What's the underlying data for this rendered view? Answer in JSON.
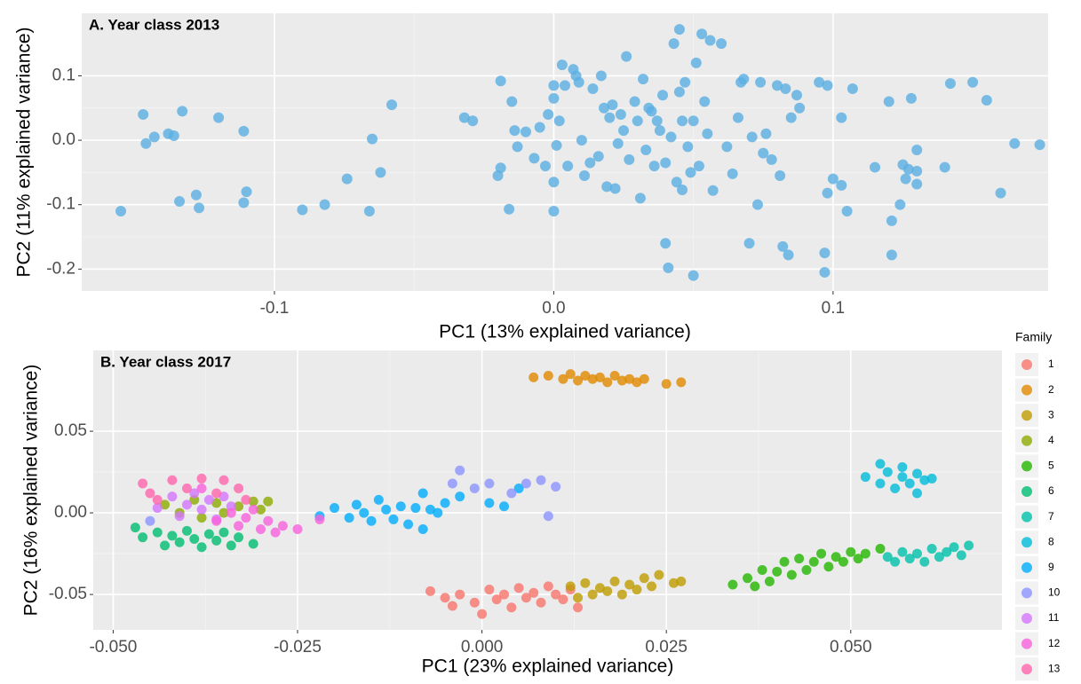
{
  "chart_data": [
    {
      "type": "scatter",
      "title": "A. Year class 2013",
      "xlabel": "PC1 (13% explained variance)",
      "ylabel": "PC2 (11% explained variance)",
      "color": "#5AAFE3",
      "x": [
        -0.147,
        -0.146,
        -0.143,
        -0.138,
        -0.136,
        -0.133,
        -0.134,
        -0.128,
        -0.127,
        -0.12,
        -0.111,
        -0.11,
        -0.111,
        -0.155,
        -0.09,
        -0.082,
        -0.074,
        -0.066,
        -0.065,
        -0.062,
        -0.058,
        -0.032,
        -0.029,
        -0.019,
        -0.019,
        -0.02,
        -0.016,
        -0.015,
        -0.014,
        -0.013,
        -0.01,
        -0.007,
        -0.005,
        -0.003,
        -0.002,
        0,
        0,
        0,
        0,
        0.001,
        0.002,
        0.003,
        0.004,
        0.005,
        0.007,
        0.008,
        0.009,
        0.01,
        0.011,
        0.013,
        0.014,
        0.016,
        0.017,
        0.018,
        0.019,
        0.02,
        0.021,
        0.022,
        0.023,
        0.024,
        0.025,
        0.026,
        0.027,
        0.029,
        0.03,
        0.031,
        0.032,
        0.033,
        0.034,
        0.035,
        0.036,
        0.037,
        0.038,
        0.039,
        0.04,
        0.04,
        0.041,
        0.042,
        0.043,
        0.044,
        0.045,
        0.045,
        0.046,
        0.046,
        0.047,
        0.048,
        0.049,
        0.05,
        0.05,
        0.051,
        0.052,
        0.053,
        0.054,
        0.055,
        0.056,
        0.057,
        0.06,
        0.062,
        0.064,
        0.066,
        0.067,
        0.068,
        0.07,
        0.071,
        0.073,
        0.074,
        0.075,
        0.076,
        0.078,
        0.08,
        0.081,
        0.082,
        0.083,
        0.084,
        0.085,
        0.087,
        0.088,
        0.095,
        0.097,
        0.097,
        0.098,
        0.098,
        0.1,
        0.103,
        0.103,
        0.105,
        0.107,
        0.115,
        0.12,
        0.121,
        0.121,
        0.124,
        0.125,
        0.126,
        0.127,
        0.128,
        0.13,
        0.13,
        0.13,
        0.14,
        0.142,
        0.15,
        0.155,
        0.16,
        0.165,
        0.174
      ],
      "values": [
        0.04,
        -0.005,
        0.005,
        0.01,
        0.007,
        0.045,
        -0.095,
        -0.085,
        -0.105,
        0.035,
        0.014,
        -0.08,
        -0.097,
        -0.11,
        -0.108,
        -0.1,
        -0.06,
        -0.11,
        0.002,
        -0.05,
        0.055,
        0.035,
        0.03,
        0.092,
        -0.043,
        -0.055,
        -0.107,
        0.06,
        0.015,
        -0.01,
        0.013,
        -0.028,
        0.02,
        -0.04,
        0.04,
        0.085,
        0.065,
        -0.065,
        -0.11,
        -0.008,
        0.03,
        0.117,
        0.085,
        -0.04,
        0.11,
        0.1,
        0.09,
        0.0,
        -0.055,
        -0.035,
        0.08,
        -0.025,
        0.1,
        0.05,
        -0.072,
        0.035,
        0.055,
        -0.075,
        -0.005,
        0.04,
        0.015,
        0.13,
        -0.03,
        0.06,
        0.03,
        -0.09,
        0.095,
        -0.015,
        0.05,
        0.045,
        -0.04,
        0.03,
        0.015,
        0.07,
        -0.035,
        -0.16,
        -0.198,
        0.005,
        0.15,
        -0.065,
        0.172,
        0.075,
        0.03,
        -0.077,
        0.09,
        -0.01,
        -0.05,
        -0.21,
        0.03,
        0.12,
        -0.04,
        0.165,
        0.06,
        0.01,
        0.155,
        -0.078,
        0.15,
        -0.01,
        -0.052,
        0.035,
        0.09,
        0.095,
        -0.16,
        0.005,
        -0.1,
        0.09,
        -0.02,
        0.01,
        -0.03,
        0.085,
        -0.055,
        -0.165,
        0.08,
        -0.178,
        0.035,
        0.07,
        0.05,
        0.09,
        -0.175,
        -0.205,
        -0.082,
        0.085,
        -0.06,
        -0.07,
        0.035,
        -0.11,
        0.08,
        -0.042,
        0.06,
        -0.125,
        -0.178,
        -0.1,
        -0.038,
        -0.06,
        -0.045,
        0.065,
        -0.015,
        -0.048,
        -0.068,
        -0.042,
        0.088,
        0.09,
        0.062,
        -0.082,
        -0.005,
        -0.007
      ],
      "xlim": [
        -0.169,
        0.177
      ],
      "ylim": [
        -0.234,
        0.197
      ],
      "xticks": [
        -0.1,
        {
          "value": 0.0,
          "label": "0.0"
        },
        0.1
      ],
      "yticks": [
        -0.2,
        -0.1,
        {
          "value": 0.0,
          "label": "0.0"
        },
        0.1
      ],
      "grid": true
    },
    {
      "type": "scatter",
      "title": "B. Year class 2017",
      "xlabel": "PC1 (23% explained variance)",
      "ylabel": "PC2 (16% explained variance)",
      "legend_title": "Family",
      "legend": "right",
      "xlim": [
        -0.0527,
        0.0705
      ],
      "ylim": [
        -0.0717,
        0.0995
      ],
      "xticks": [
        {
          "value": -0.05,
          "label": "-0.050"
        },
        {
          "value": -0.025,
          "label": "-0.025"
        },
        {
          "value": 0,
          "label": "0.000"
        },
        {
          "value": 0.025,
          "label": "0.025"
        },
        {
          "value": 0.05,
          "label": "0.050"
        }
      ],
      "yticks": [
        -0.05,
        {
          "value": 0,
          "label": "0.00"
        },
        0.05
      ],
      "grid": true,
      "series": [
        {
          "name": "1",
          "color": "#F8766D",
          "x": [
            -0.007,
            -0.005,
            -0.003,
            -0.001,
            0.001,
            0.002,
            0.003,
            0.004,
            0.005,
            0.006,
            0.007,
            0.008,
            0.009,
            0.01,
            0.011,
            0.012,
            0.013,
            -0.004,
            0.0
          ],
          "values": [
            -0.048,
            -0.052,
            -0.05,
            -0.055,
            -0.047,
            -0.053,
            -0.05,
            -0.058,
            -0.046,
            -0.052,
            -0.049,
            -0.055,
            -0.045,
            -0.05,
            -0.053,
            -0.047,
            -0.058,
            -0.057,
            -0.062
          ]
        },
        {
          "name": "2",
          "color": "#E18A00",
          "x": [
            0.007,
            0.009,
            0.011,
            0.012,
            0.013,
            0.014,
            0.015,
            0.016,
            0.017,
            0.018,
            0.019,
            0.02,
            0.021,
            0.022,
            0.025,
            0.027
          ],
          "values": [
            0.083,
            0.084,
            0.082,
            0.085,
            0.081,
            0.084,
            0.082,
            0.083,
            0.08,
            0.084,
            0.081,
            0.082,
            0.08,
            0.082,
            0.079,
            0.08
          ]
        },
        {
          "name": "3",
          "color": "#BE9C00",
          "x": [
            0.012,
            0.013,
            0.014,
            0.015,
            0.016,
            0.017,
            0.018,
            0.019,
            0.02,
            0.021,
            0.022,
            0.023,
            0.024,
            0.026,
            0.027
          ],
          "values": [
            -0.045,
            -0.052,
            -0.043,
            -0.05,
            -0.046,
            -0.048,
            -0.042,
            -0.05,
            -0.044,
            -0.047,
            -0.04,
            -0.045,
            -0.038,
            -0.043,
            -0.042
          ]
        },
        {
          "name": "4",
          "color": "#8CAB00",
          "x": [
            -0.043,
            -0.041,
            -0.039,
            -0.038,
            -0.036,
            -0.035,
            -0.033,
            -0.031,
            -0.03,
            -0.029
          ],
          "values": [
            0.005,
            0.0,
            0.008,
            -0.003,
            0.006,
            0.0,
            0.004,
            0.007,
            0.002,
            0.007
          ]
        },
        {
          "name": "5",
          "color": "#24B700",
          "x": [
            0.034,
            0.036,
            0.037,
            0.038,
            0.039,
            0.04,
            0.041,
            0.042,
            0.043,
            0.044,
            0.045,
            0.046,
            0.047,
            0.048,
            0.049,
            0.05,
            0.051,
            0.052,
            0.054
          ],
          "values": [
            -0.044,
            -0.04,
            -0.045,
            -0.035,
            -0.042,
            -0.036,
            -0.03,
            -0.038,
            -0.028,
            -0.035,
            -0.03,
            -0.025,
            -0.033,
            -0.027,
            -0.03,
            -0.024,
            -0.028,
            -0.025,
            -0.022
          ]
        },
        {
          "name": "6",
          "color": "#00BE70",
          "x": [
            -0.047,
            -0.046,
            -0.044,
            -0.043,
            -0.042,
            -0.041,
            -0.04,
            -0.039,
            -0.038,
            -0.037,
            -0.036,
            -0.035,
            -0.034,
            -0.033,
            -0.031
          ],
          "values": [
            -0.009,
            -0.015,
            -0.012,
            -0.02,
            -0.014,
            -0.018,
            -0.011,
            -0.016,
            -0.021,
            -0.013,
            -0.017,
            -0.012,
            -0.02,
            -0.015,
            -0.019
          ]
        },
        {
          "name": "7",
          "color": "#00C1AB",
          "x": [
            0.055,
            0.056,
            0.057,
            0.058,
            0.059,
            0.06,
            0.061,
            0.062,
            0.063,
            0.064,
            0.065,
            0.066
          ],
          "values": [
            -0.027,
            -0.03,
            -0.024,
            -0.028,
            -0.025,
            -0.03,
            -0.022,
            -0.027,
            -0.024,
            -0.021,
            -0.026,
            -0.02
          ]
        },
        {
          "name": "8",
          "color": "#00BBDA",
          "x": [
            0.052,
            0.054,
            0.054,
            0.055,
            0.056,
            0.057,
            0.057,
            0.058,
            0.059,
            0.059,
            0.06,
            0.061
          ],
          "values": [
            0.022,
            0.018,
            0.03,
            0.025,
            0.015,
            0.022,
            0.028,
            0.018,
            0.024,
            0.012,
            0.02,
            0.021
          ]
        },
        {
          "name": "9",
          "color": "#00ACFC",
          "x": [
            -0.022,
            -0.02,
            -0.018,
            -0.017,
            -0.016,
            -0.015,
            -0.014,
            -0.013,
            -0.012,
            -0.011,
            -0.01,
            -0.009,
            -0.008,
            -0.008,
            -0.007,
            -0.006,
            -0.005,
            -0.003,
            0.001,
            0.003,
            0.005
          ],
          "values": [
            -0.002,
            0.003,
            -0.003,
            0.005,
            0.0,
            -0.005,
            0.008,
            0.002,
            -0.004,
            0.004,
            -0.007,
            0.003,
            0.012,
            -0.01,
            0.002,
            0.0,
            0.006,
            0.01,
            0.006,
            0.004,
            0.015
          ]
        },
        {
          "name": "10",
          "color": "#8B93FF",
          "x": [
            -0.004,
            -0.003,
            -0.001,
            0.001,
            0.004,
            0.006,
            0.008,
            0.01,
            0.009,
            -0.045
          ],
          "values": [
            0.018,
            0.026,
            0.015,
            0.018,
            0.012,
            0.018,
            0.02,
            0.016,
            -0.002,
            -0.005
          ]
        },
        {
          "name": "11",
          "color": "#D575FE",
          "x": [
            -0.044,
            -0.042,
            -0.041,
            -0.04,
            -0.039,
            -0.038,
            -0.037,
            -0.036,
            -0.035,
            -0.034
          ],
          "values": [
            0.003,
            0.01,
            -0.002,
            0.005,
            0.012,
            0.002,
            0.008,
            -0.004,
            0.01,
            0.004
          ]
        },
        {
          "name": "12",
          "color": "#F962DD",
          "x": [
            -0.036,
            -0.034,
            -0.033,
            -0.032,
            -0.031,
            -0.03,
            -0.029,
            -0.028,
            -0.027,
            -0.025,
            -0.022,
            -0.038
          ],
          "values": [
            -0.005,
            0.0,
            -0.008,
            -0.003,
            0.002,
            -0.01,
            -0.005,
            -0.012,
            -0.008,
            -0.01,
            -0.004,
            0.015
          ]
        },
        {
          "name": "13",
          "color": "#FF65AC",
          "x": [
            -0.046,
            -0.045,
            -0.044,
            -0.042,
            -0.04,
            -0.038,
            -0.036,
            -0.035,
            -0.033,
            -0.032
          ],
          "values": [
            0.018,
            0.012,
            0.008,
            0.02,
            0.015,
            0.021,
            0.012,
            0.02,
            0.015,
            0.008
          ]
        }
      ]
    }
  ]
}
